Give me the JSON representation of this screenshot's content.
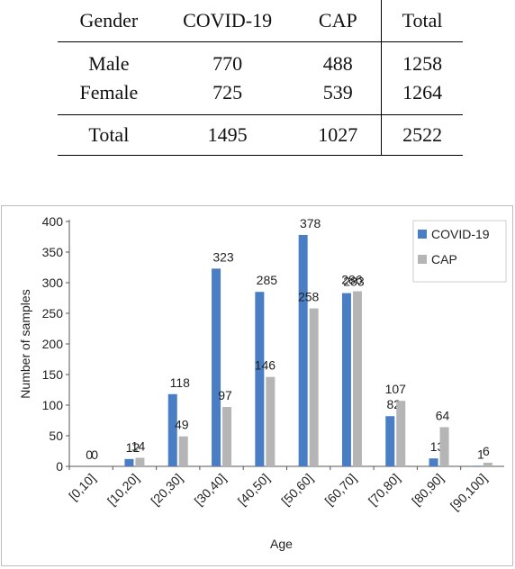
{
  "table": {
    "headers": [
      "Gender",
      "COVID-19",
      "CAP",
      "Total"
    ],
    "rows": [
      [
        "Male",
        "770",
        "488",
        "1258"
      ],
      [
        "Female",
        "725",
        "539",
        "1264"
      ]
    ],
    "total_row": [
      "Total",
      "1495",
      "1027",
      "2522"
    ]
  },
  "chart_data": {
    "type": "bar",
    "categories": [
      "[0,10]",
      "[10,20]",
      "[20,30]",
      "[30,40]",
      "[40,50]",
      "[50,60]",
      "[60,70]",
      "[70,80]",
      "[80,90]",
      "[90,100]"
    ],
    "series": [
      {
        "name": "COVID-19",
        "color": "#4a7ec4",
        "values": [
          0,
          12,
          118,
          323,
          285,
          378,
          283,
          82,
          13,
          1
        ]
      },
      {
        "name": "CAP",
        "color": "#b5b5b5",
        "values": [
          0,
          14,
          49,
          97,
          146,
          258,
          286,
          107,
          64,
          6
        ]
      }
    ],
    "xlabel": "Age",
    "ylabel": "Number of samples",
    "ylim": [
      0,
      400
    ],
    "yticks": [
      0,
      50,
      100,
      150,
      200,
      250,
      300,
      350,
      400
    ],
    "grid": false,
    "legend": "top-right"
  }
}
